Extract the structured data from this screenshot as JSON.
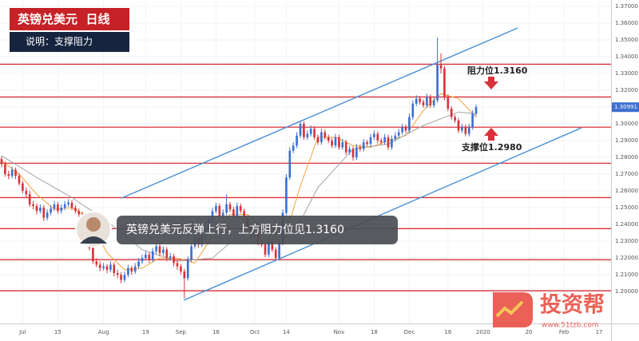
{
  "chart_data": {
    "type": "candlestick",
    "title": "英镑兑美元  日线",
    "subtitle": "说明：支撑阻力",
    "caption": "英镑兑美元反弹上行，上方阻力位见1.3160",
    "annotations": [
      "阻力位1.3160",
      "支撑位1.2980"
    ],
    "watermark": {
      "brand": "投资帮",
      "url": "www.51tzb.com"
    },
    "up_color": "#3d6fd1",
    "down_color": "#d8323a",
    "grid": true,
    "xlim": [
      -0.45,
      173.4
    ],
    "ylim": [
      1.181,
      1.3738
    ],
    "xticks": [
      {
        "value": 6,
        "label": "Jul"
      },
      {
        "value": 16,
        "label": "15"
      },
      {
        "value": 29,
        "label": "Aug"
      },
      {
        "value": 41,
        "label": "19"
      },
      {
        "value": 51,
        "label": "Sep"
      },
      {
        "value": 61,
        "label": "16"
      },
      {
        "value": 72,
        "label": "Oct"
      },
      {
        "value": 81,
        "label": "14"
      },
      {
        "value": 96,
        "label": "Nov"
      },
      {
        "value": 106,
        "label": "18"
      },
      {
        "value": 116,
        "label": "Dec"
      },
      {
        "value": 127,
        "label": "16"
      },
      {
        "value": 137,
        "label": "2020"
      },
      {
        "value": 150,
        "label": "20"
      },
      {
        "value": 160,
        "label": "Feb"
      },
      {
        "value": 170,
        "label": "17"
      }
    ],
    "yticks": [
      {
        "value": 1.2,
        "label": "1.20000"
      },
      {
        "value": 1.21,
        "label": "1.21000"
      },
      {
        "value": 1.22,
        "label": "1.22000"
      },
      {
        "value": 1.23,
        "label": "1.23000"
      },
      {
        "value": 1.24,
        "label": "1.24000"
      },
      {
        "value": 1.25,
        "label": "1.25000"
      },
      {
        "value": 1.26,
        "label": "1.26000"
      },
      {
        "value": 1.27,
        "label": "1.27000"
      },
      {
        "value": 1.28,
        "label": "1.28000"
      },
      {
        "value": 1.29,
        "label": "1.29000"
      },
      {
        "value": 1.3,
        "label": "1.30000"
      },
      {
        "value": 1.31,
        "label": "1.31000"
      },
      {
        "value": 1.32,
        "label": "1.32000"
      },
      {
        "value": 1.33,
        "label": "1.33000"
      },
      {
        "value": 1.34,
        "label": "1.34000"
      },
      {
        "value": 1.35,
        "label": "1.35000"
      },
      {
        "value": 1.36,
        "label": "1.36000"
      },
      {
        "value": 1.37,
        "label": "1.37000"
      }
    ],
    "candles": [
      [
        1.279,
        1.2805,
        1.274,
        1.276
      ],
      [
        1.276,
        1.2775,
        1.2685,
        1.27
      ],
      [
        1.27,
        1.272,
        1.267,
        1.269
      ],
      [
        1.269,
        1.2745,
        1.2675,
        1.2725
      ],
      [
        1.2725,
        1.274,
        1.267,
        1.269
      ],
      [
        1.269,
        1.2705,
        1.263,
        1.2645
      ],
      [
        1.2645,
        1.266,
        1.2585,
        1.26
      ],
      [
        1.26,
        1.262,
        1.256,
        1.258
      ],
      [
        1.258,
        1.26,
        1.2505,
        1.252
      ],
      [
        1.252,
        1.254,
        1.249,
        1.251
      ],
      [
        1.251,
        1.2525,
        1.246,
        1.248
      ],
      [
        1.248,
        1.252,
        1.2465,
        1.25
      ],
      [
        1.25,
        1.2515,
        1.242,
        1.244
      ],
      [
        1.244,
        1.249,
        1.2425,
        1.247
      ],
      [
        1.247,
        1.2515,
        1.2455,
        1.2495
      ],
      [
        1.2495,
        1.254,
        1.248,
        1.252
      ],
      [
        1.252,
        1.2535,
        1.2465,
        1.248
      ],
      [
        1.248,
        1.252,
        1.2465,
        1.25
      ],
      [
        1.25,
        1.254,
        1.2485,
        1.252
      ],
      [
        1.252,
        1.255,
        1.2505,
        1.253
      ],
      [
        1.253,
        1.2545,
        1.2485,
        1.25
      ],
      [
        1.25,
        1.2515,
        1.2465,
        1.248
      ],
      [
        1.248,
        1.2495,
        1.2445,
        1.246
      ],
      [
        1.246,
        1.2475,
        1.2415,
        1.243
      ],
      [
        1.243,
        1.2445,
        1.2365,
        1.238
      ],
      [
        1.238,
        1.2395,
        1.2245,
        1.226
      ],
      [
        1.226,
        1.2275,
        1.2165,
        1.218
      ],
      [
        1.218,
        1.22,
        1.2145,
        1.216
      ],
      [
        1.216,
        1.218,
        1.212,
        1.214
      ],
      [
        1.214,
        1.217,
        1.2125,
        1.215
      ],
      [
        1.215,
        1.2165,
        1.211,
        1.213
      ],
      [
        1.213,
        1.218,
        1.2115,
        1.216
      ],
      [
        1.216,
        1.2175,
        1.209,
        1.211
      ],
      [
        1.211,
        1.213,
        1.208,
        1.21
      ],
      [
        1.21,
        1.2115,
        1.205,
        1.207
      ],
      [
        1.207,
        1.212,
        1.2055,
        1.21
      ],
      [
        1.21,
        1.216,
        1.2085,
        1.214
      ],
      [
        1.214,
        1.2155,
        1.21,
        1.212
      ],
      [
        1.212,
        1.217,
        1.2105,
        1.215
      ],
      [
        1.215,
        1.22,
        1.2135,
        1.218
      ],
      [
        1.218,
        1.222,
        1.2165,
        1.22
      ],
      [
        1.22,
        1.224,
        1.2185,
        1.222
      ],
      [
        1.222,
        1.2235,
        1.217,
        1.219
      ],
      [
        1.219,
        1.226,
        1.2175,
        1.224
      ],
      [
        1.224,
        1.229,
        1.2225,
        1.227
      ],
      [
        1.227,
        1.2285,
        1.221,
        1.223
      ],
      [
        1.223,
        1.227,
        1.2215,
        1.225
      ],
      [
        1.225,
        1.2265,
        1.218,
        1.22
      ],
      [
        1.22,
        1.223,
        1.2185,
        1.221
      ],
      [
        1.221,
        1.2225,
        1.215,
        1.217
      ],
      [
        1.217,
        1.2185,
        1.213,
        1.215
      ],
      [
        1.215,
        1.2165,
        1.21,
        1.212
      ],
      [
        1.212,
        1.2135,
        1.196,
        1.208
      ],
      [
        1.208,
        1.221,
        1.2065,
        1.219
      ],
      [
        1.219,
        1.229,
        1.2175,
        1.227
      ],
      [
        1.227,
        1.234,
        1.2255,
        1.232
      ],
      [
        1.232,
        1.2335,
        1.226,
        1.228
      ],
      [
        1.228,
        1.235,
        1.2265,
        1.233
      ],
      [
        1.233,
        1.239,
        1.2315,
        1.237
      ],
      [
        1.237,
        1.245,
        1.2355,
        1.243
      ],
      [
        1.243,
        1.25,
        1.2415,
        1.248
      ],
      [
        1.248,
        1.253,
        1.2465,
        1.251
      ],
      [
        1.251,
        1.2525,
        1.2435,
        1.245
      ],
      [
        1.245,
        1.249,
        1.2435,
        1.247
      ],
      [
        1.247,
        1.258,
        1.2455,
        1.252
      ],
      [
        1.252,
        1.2535,
        1.2475,
        1.249
      ],
      [
        1.249,
        1.2505,
        1.2435,
        1.245
      ],
      [
        1.245,
        1.253,
        1.2435,
        1.251
      ],
      [
        1.251,
        1.2525,
        1.2465,
        1.248
      ],
      [
        1.248,
        1.2495,
        1.2425,
        1.244
      ],
      [
        1.244,
        1.2455,
        1.2375,
        1.239
      ],
      [
        1.239,
        1.2405,
        1.2315,
        1.233
      ],
      [
        1.233,
        1.237,
        1.2315,
        1.235
      ],
      [
        1.235,
        1.2365,
        1.2275,
        1.229
      ],
      [
        1.229,
        1.231,
        1.2265,
        1.228
      ],
      [
        1.228,
        1.2295,
        1.2205,
        1.222
      ],
      [
        1.222,
        1.232,
        1.2205,
        1.23
      ],
      [
        1.23,
        1.2315,
        1.2235,
        1.225
      ],
      [
        1.225,
        1.2265,
        1.2185,
        1.22
      ],
      [
        1.22,
        1.231,
        1.2185,
        1.229
      ],
      [
        1.229,
        1.249,
        1.2275,
        1.247
      ],
      [
        1.247,
        1.27,
        1.2455,
        1.268
      ],
      [
        1.268,
        1.286,
        1.2665,
        1.284
      ],
      [
        1.284,
        1.289,
        1.2825,
        1.287
      ],
      [
        1.287,
        1.295,
        1.2855,
        1.293
      ],
      [
        1.293,
        1.3015,
        1.2915,
        1.3
      ],
      [
        1.3,
        1.3015,
        1.2905,
        1.292
      ],
      [
        1.292,
        1.296,
        1.2905,
        1.294
      ],
      [
        1.294,
        1.299,
        1.2925,
        1.297
      ],
      [
        1.297,
        1.2985,
        1.2905,
        1.292
      ],
      [
        1.292,
        1.2935,
        1.2875,
        1.289
      ],
      [
        1.289,
        1.297,
        1.2875,
        1.295
      ],
      [
        1.295,
        1.2965,
        1.2905,
        1.292
      ],
      [
        1.292,
        1.2935,
        1.2885,
        1.29
      ],
      [
        1.29,
        1.2915,
        1.2855,
        1.287
      ],
      [
        1.287,
        1.294,
        1.2855,
        1.292
      ],
      [
        1.292,
        1.2935,
        1.2845,
        1.286
      ],
      [
        1.286,
        1.291,
        1.2845,
        1.289
      ],
      [
        1.289,
        1.2905,
        1.2815,
        1.283
      ],
      [
        1.283,
        1.287,
        1.2815,
        1.285
      ],
      [
        1.285,
        1.2865,
        1.278,
        1.28
      ],
      [
        1.28,
        1.288,
        1.2785,
        1.286
      ],
      [
        1.286,
        1.2875,
        1.2835,
        1.285
      ],
      [
        1.285,
        1.291,
        1.2835,
        1.289
      ],
      [
        1.289,
        1.2905,
        1.2865,
        1.288
      ],
      [
        1.288,
        1.294,
        1.2865,
        1.292
      ],
      [
        1.292,
        1.296,
        1.2905,
        1.294
      ],
      [
        1.294,
        1.2955,
        1.2885,
        1.29
      ],
      [
        1.29,
        1.2915,
        1.2875,
        1.289
      ],
      [
        1.289,
        1.294,
        1.2875,
        1.292
      ],
      [
        1.292,
        1.2935,
        1.2845,
        1.286
      ],
      [
        1.286,
        1.293,
        1.2845,
        1.291
      ],
      [
        1.291,
        1.295,
        1.2895,
        1.293
      ],
      [
        1.293,
        1.297,
        1.2915,
        1.295
      ],
      [
        1.295,
        1.3,
        1.2935,
        1.298
      ],
      [
        1.298,
        1.2995,
        1.2945,
        1.296
      ],
      [
        1.296,
        1.306,
        1.2945,
        1.304
      ],
      [
        1.304,
        1.314,
        1.3025,
        1.312
      ],
      [
        1.312,
        1.317,
        1.3105,
        1.315
      ],
      [
        1.315,
        1.3165,
        1.3115,
        1.313
      ],
      [
        1.313,
        1.3145,
        1.3095,
        1.311
      ],
      [
        1.311,
        1.318,
        1.3095,
        1.316
      ],
      [
        1.316,
        1.3175,
        1.3095,
        1.311
      ],
      [
        1.311,
        1.316,
        1.3095,
        1.314
      ],
      [
        1.314,
        1.3514,
        1.3125,
        1.335
      ],
      [
        1.335,
        1.342,
        1.33,
        1.333
      ],
      [
        1.333,
        1.3345,
        1.314,
        1.316
      ],
      [
        1.316,
        1.3175,
        1.3075,
        1.309
      ],
      [
        1.309,
        1.3105,
        1.3025,
        1.304
      ],
      [
        1.304,
        1.3055,
        1.3005,
        1.302
      ],
      [
        1.302,
        1.3035,
        1.2945,
        1.296
      ],
      [
        1.296,
        1.3,
        1.2945,
        1.298
      ],
      [
        1.298,
        1.2995,
        1.2925,
        1.294
      ],
      [
        1.294,
        1.3,
        1.2925,
        1.298
      ],
      [
        1.298,
        1.308,
        1.2965,
        1.306
      ],
      [
        1.306,
        1.3115,
        1.3045,
        1.30991
      ]
    ],
    "series": [
      {
        "color": "#f2a33a",
        "x": [
          0,
          5,
          10,
          15,
          20,
          25,
          30,
          35,
          40,
          45,
          50,
          55,
          60,
          65,
          70,
          75,
          80,
          85,
          90,
          95,
          100,
          105,
          110,
          115,
          120,
          125,
          130,
          135
        ],
        "values": [
          1.278,
          1.27,
          1.258,
          1.249,
          1.25,
          1.244,
          1.223,
          1.213,
          1.214,
          1.22,
          1.22,
          1.217,
          1.233,
          1.246,
          1.246,
          1.236,
          1.228,
          1.263,
          1.292,
          1.292,
          1.287,
          1.286,
          1.29,
          1.293,
          1.308,
          1.318,
          1.315,
          1.304
        ]
      },
      {
        "color": "#a3a3a3",
        "x": [
          0,
          10,
          20,
          30,
          40,
          50,
          60,
          70,
          80,
          85,
          90,
          100,
          110,
          120,
          130,
          135
        ],
        "values": [
          1.281,
          1.268,
          1.256,
          1.242,
          1.225,
          1.218,
          1.22,
          1.238,
          1.235,
          1.242,
          1.262,
          1.285,
          1.288,
          1.299,
          1.307,
          1.306
        ]
      }
    ],
    "levels": [
      1.3355,
      1.316,
      1.298,
      1.2765,
      1.256,
      1.2375,
      1.219,
      1.2005
    ],
    "level_color": "#d8323a",
    "channels": [
      {
        "color": "#4a90d9",
        "x": [
          34.1,
          146.8
        ],
        "values": [
          1.2557,
          1.3571
        ]
      },
      {
        "color": "#4a90d9",
        "x": [
          51.8,
          165
        ],
        "values": [
          1.1948,
          1.2976
        ]
      }
    ]
  }
}
